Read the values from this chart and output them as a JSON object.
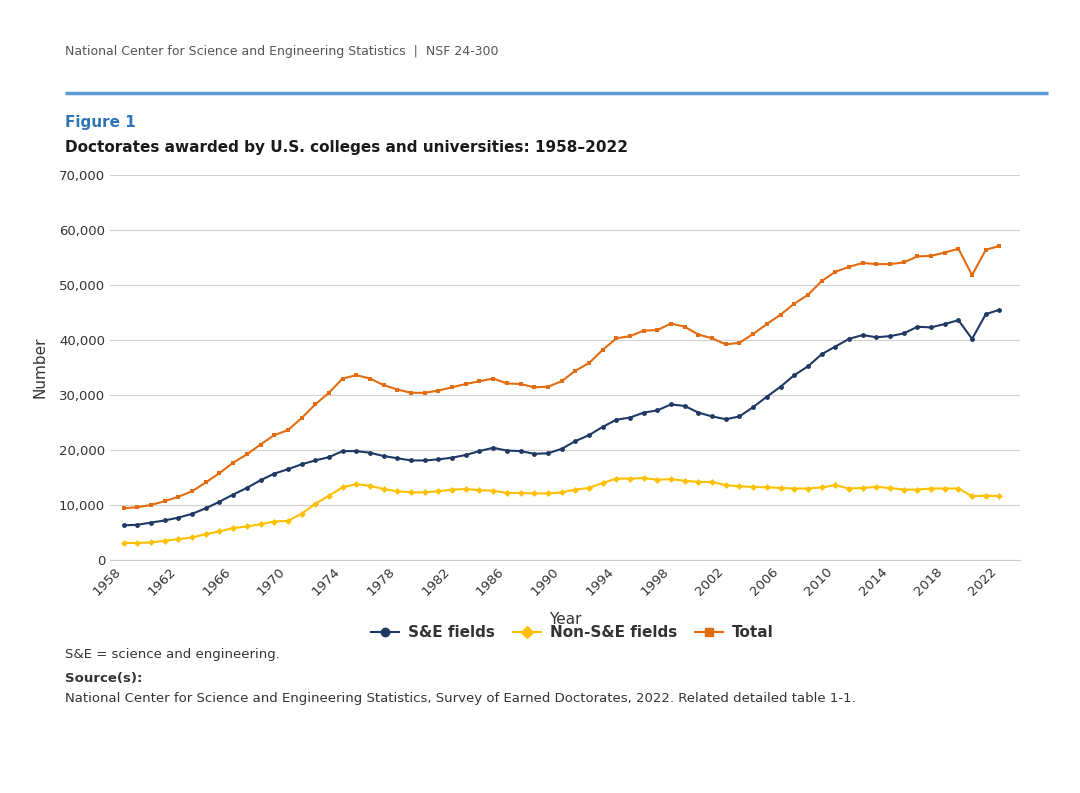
{
  "header": "National Center for Science and Engineering Statistics  |  NSF 24-300",
  "figure_label": "Figure 1",
  "title": "Doctorates awarded by U.S. colleges and universities: 1958–2022",
  "xlabel": "Year",
  "ylabel": "Number",
  "footer_note": "S&E = science and engineering.",
  "source_label": "Source(s):",
  "source_text": "National Center for Science and Engineering Statistics, Survey of Earned Doctorates, 2022. Related detailed table 1-1.",
  "ylim": [
    0,
    70000
  ],
  "yticks": [
    0,
    10000,
    20000,
    30000,
    40000,
    50000,
    60000,
    70000
  ],
  "header_line_color": "#5b9bd5",
  "figure_label_color": "#2e75b6",
  "se_color": "#1f3864",
  "nonse_color": "#ffc000",
  "total_color": "#e36b10",
  "legend_se": "S&E fields",
  "legend_nonse": "Non-S&E fields",
  "legend_total": "Total",
  "years": [
    1958,
    1959,
    1960,
    1961,
    1962,
    1963,
    1964,
    1965,
    1966,
    1967,
    1968,
    1969,
    1970,
    1971,
    1972,
    1973,
    1974,
    1975,
    1976,
    1977,
    1978,
    1979,
    1980,
    1981,
    1982,
    1983,
    1984,
    1985,
    1986,
    1987,
    1988,
    1989,
    1990,
    1991,
    1992,
    1993,
    1994,
    1995,
    1996,
    1997,
    1998,
    1999,
    2000,
    2001,
    2002,
    2003,
    2004,
    2005,
    2006,
    2007,
    2008,
    2009,
    2010,
    2011,
    2012,
    2013,
    2014,
    2015,
    2016,
    2017,
    2018,
    2019,
    2020,
    2021,
    2022
  ],
  "se_fields": [
    6300,
    6400,
    6800,
    7200,
    7700,
    8400,
    9400,
    10600,
    11900,
    13100,
    14500,
    15700,
    16500,
    17400,
    18100,
    18700,
    19800,
    19800,
    19500,
    18900,
    18500,
    18100,
    18100,
    18300,
    18600,
    19100,
    19800,
    20400,
    19900,
    19800,
    19300,
    19400,
    20200,
    21600,
    22700,
    24200,
    25500,
    25900,
    26800,
    27200,
    28300,
    28000,
    26800,
    26100,
    25600,
    26100,
    27800,
    29700,
    31500,
    33600,
    35200,
    37400,
    38800,
    40200,
    40900,
    40500,
    40700,
    41200,
    42400,
    42300,
    42900,
    43600,
    40200,
    44700,
    45500
  ],
  "nonse_fields": [
    3100,
    3100,
    3200,
    3500,
    3800,
    4100,
    4700,
    5200,
    5800,
    6100,
    6500,
    7000,
    7100,
    8400,
    10200,
    11700,
    13200,
    13800,
    13500,
    12900,
    12500,
    12300,
    12300,
    12500,
    12800,
    12900,
    12700,
    12600,
    12200,
    12200,
    12100,
    12100,
    12300,
    12800,
    13100,
    14000,
    14800,
    14800,
    14900,
    14600,
    14700,
    14400,
    14200,
    14200,
    13600,
    13400,
    13300,
    13200,
    13100,
    13000,
    13000,
    13200,
    13600,
    13000,
    13100,
    13300,
    13100,
    12800,
    12800,
    13000,
    13000,
    13000,
    11600,
    11700,
    11600
  ],
  "total": [
    9400,
    9600,
    10000,
    10700,
    11500,
    12500,
    14100,
    15800,
    17700,
    19200,
    21000,
    22700,
    23600,
    25800,
    28300,
    30400,
    33000,
    33600,
    33000,
    31800,
    31000,
    30400,
    30400,
    30800,
    31400,
    32000,
    32500,
    33000,
    32100,
    32000,
    31400,
    31500,
    32500,
    34400,
    35800,
    38200,
    40300,
    40700,
    41700,
    41800,
    43000,
    42400,
    41000,
    40300,
    39200,
    39500,
    41100,
    42900,
    44600,
    46600,
    48200,
    50700,
    52400,
    53300,
    54000,
    53800,
    53800,
    54100,
    55200,
    55300,
    55900,
    56600,
    51800,
    56400,
    57100
  ]
}
